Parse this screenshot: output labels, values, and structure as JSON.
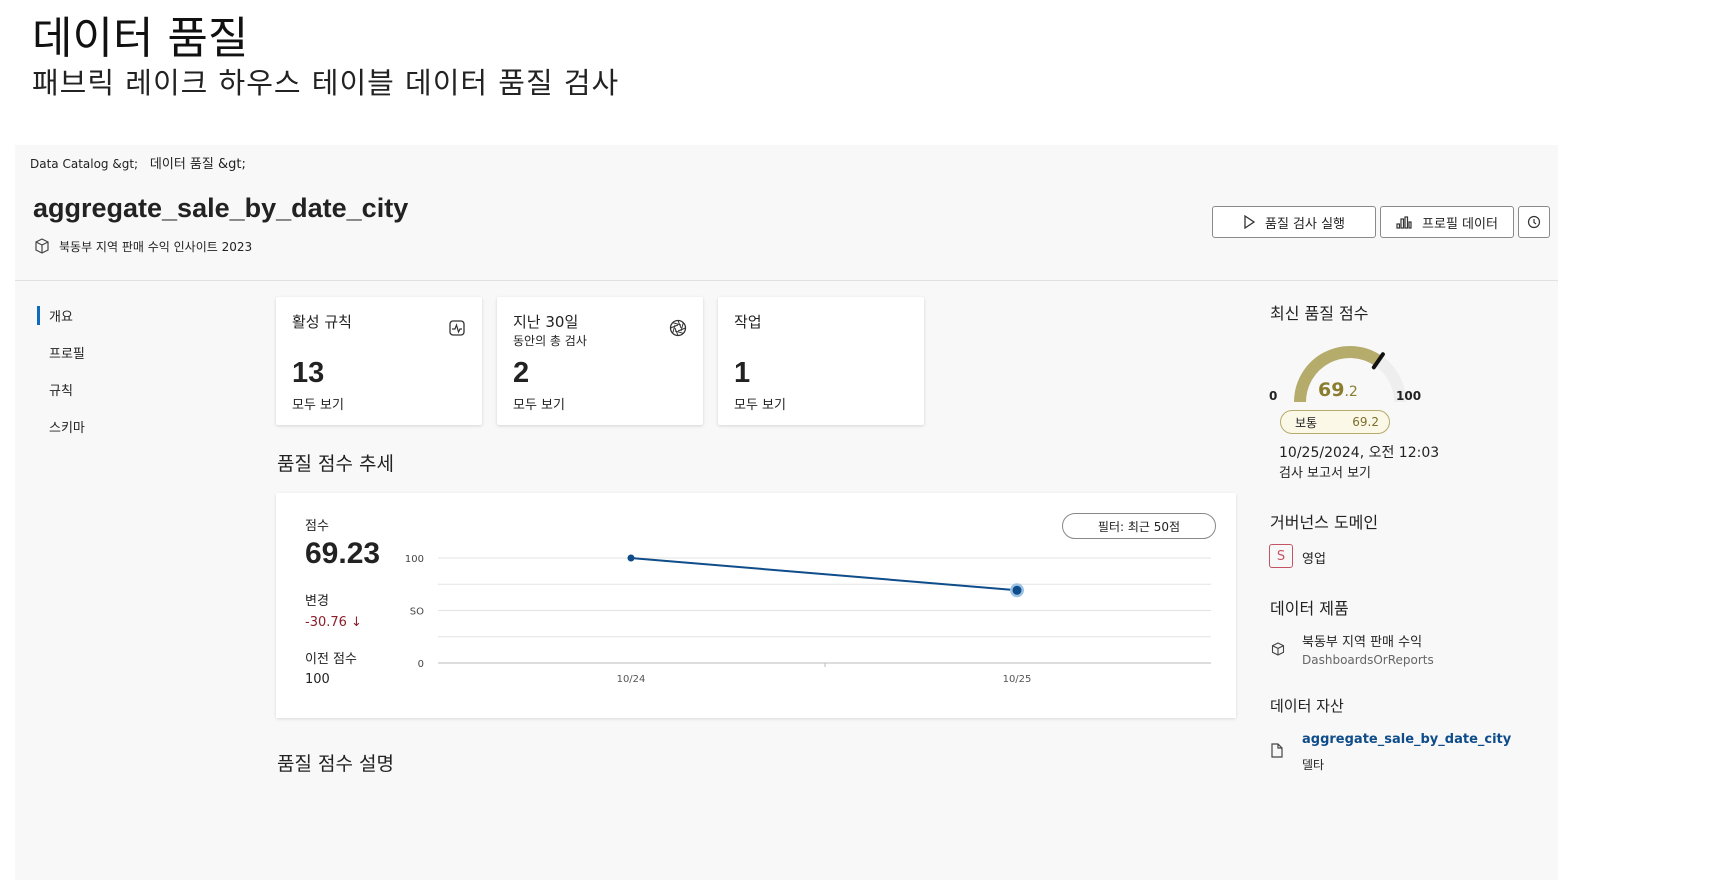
{
  "page": {
    "title": "데이터 품질",
    "subtitle": "패브릭 레이크 하우스 테이블 데이터 품질 검사"
  },
  "breadcrumb": [
    "Data Catalog &gt;",
    "데이터 품질 &gt;"
  ],
  "header": {
    "asset_name": "aggregate_sale_by_date_city",
    "asset_product": "북동부 지역 판매 수익 인사이트 2023",
    "run_button": "품질 검사 실행",
    "profile_button": "프로필 데이터"
  },
  "nav": [
    {
      "label": "개요",
      "active": true
    },
    {
      "label": "프로필"
    },
    {
      "label": "규칙"
    },
    {
      "label": "스키마"
    }
  ],
  "cards": [
    {
      "title": "활성 규칙",
      "subtitle": "",
      "value": "13",
      "link": "모두 보기",
      "icon": "activity-icon"
    },
    {
      "title": "지난 30일",
      "subtitle": "동안의 총 검사",
      "value": "2",
      "link": "모두 보기",
      "icon": "aperture-icon"
    },
    {
      "title": "작업",
      "subtitle": "",
      "value": "1",
      "link": "모두 보기",
      "icon": ""
    }
  ],
  "trend": {
    "heading": "품질 점수 추세",
    "score_label": "점수",
    "score": "69.23",
    "change_label": "변경",
    "change": "-30.76 ↓",
    "previous_label": "이전 점수",
    "previous": "100",
    "filter": "필터:  최근 50점"
  },
  "chart_data": {
    "type": "line",
    "x": [
      "10/24",
      "10/25"
    ],
    "series": [
      {
        "values": [
          100,
          69.23
        ]
      }
    ],
    "ylim": [
      0,
      100
    ],
    "yticks": [
      {
        "v": 100,
        "label": "100"
      },
      {
        "v": 50,
        "label": "SO"
      },
      {
        "v": 0,
        "label": "0"
      }
    ],
    "gridlines": [
      0,
      25,
      50,
      75,
      100
    ],
    "color": "#0e4c8a"
  },
  "description_heading": "품질 점수 설명",
  "right": {
    "latest_heading": "최신 품질 점수",
    "gauge": {
      "value": 69.2,
      "int": "69",
      "dec": ".2",
      "min": "0",
      "max": "100",
      "color": "#b5ab6b"
    },
    "badge_label": "보통",
    "badge_value": "69.2",
    "timestamp": "10/25/2024, 오전 12:03",
    "report_link": "검사 보고서 보기",
    "domain_heading": "거버넌스 도메인",
    "domain_initial": "S",
    "domain": "영업",
    "product_heading": "데이터 제품",
    "product_name": "북동부 지역 판매 수익",
    "product_type": "DashboardsOrReports",
    "asset_heading": "데이터 자산",
    "asset_name": "aggregate_sale_by_date_city",
    "asset_type": "델타"
  }
}
